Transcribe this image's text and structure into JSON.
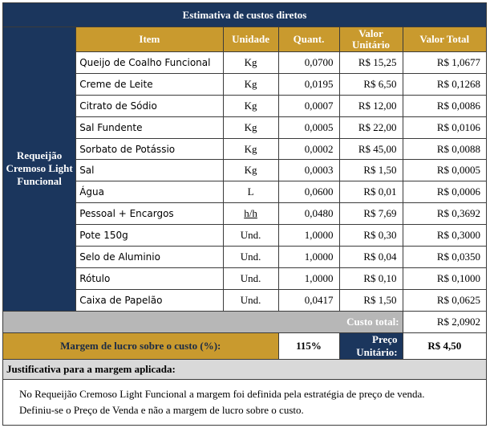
{
  "table": {
    "title": "Estimativa de custos diretos",
    "product_name": "Requeijão Cremoso Light Funcional",
    "headers": {
      "item": "Item",
      "unit": "Unidade",
      "qty": "Quant.",
      "unit_value": "Valor Unitário",
      "total_value": "Valor Total"
    },
    "rows": [
      {
        "item": "Queijo de Coalho Funcional",
        "unit": "Kg",
        "qty": "0,0700",
        "unit_value": "R$ 15,25",
        "total_value": "R$ 1,0677"
      },
      {
        "item": "Creme de Leite",
        "unit": "Kg",
        "qty": "0,0195",
        "unit_value": "R$ 6,50",
        "total_value": "R$ 0,1268"
      },
      {
        "item": "Citrato de Sódio",
        "unit": "Kg",
        "qty": "0,0007",
        "unit_value": "R$ 12,00",
        "total_value": "R$ 0,0086"
      },
      {
        "item": "Sal Fundente",
        "unit": "Kg",
        "qty": "0,0005",
        "unit_value": "R$ 22,00",
        "total_value": "R$ 0,0106"
      },
      {
        "item": "Sorbato de Potássio",
        "unit": "Kg",
        "qty": "0,0002",
        "unit_value": "R$ 45,00",
        "total_value": "R$ 0,0088"
      },
      {
        "item": "Sal",
        "unit": "Kg",
        "qty": "0,0003",
        "unit_value": "R$ 1,50",
        "total_value": "R$ 0,0005"
      },
      {
        "item": "Água",
        "unit": "L",
        "qty": "0,0600",
        "unit_value": "R$ 0,01",
        "total_value": "R$ 0,0006"
      },
      {
        "item": "Pessoal + Encargos",
        "unit": "h/h",
        "qty": "0,0480",
        "unit_value": "R$ 7,69",
        "total_value": "R$ 0,3692"
      },
      {
        "item": "Pote 150g",
        "unit": "Und.",
        "qty": "1,0000",
        "unit_value": "R$ 0,30",
        "total_value": "R$ 0,3000"
      },
      {
        "item": "Selo de Aluminio",
        "unit": "Und.",
        "qty": "1,0000",
        "unit_value": "R$ 0,04",
        "total_value": "R$ 0,0350"
      },
      {
        "item": "Rótulo",
        "unit": "Und.",
        "qty": "1,0000",
        "unit_value": "R$ 0,10",
        "total_value": "R$ 0,1000"
      },
      {
        "item": "Caixa de Papelão",
        "unit": "Und.",
        "qty": "0,0417",
        "unit_value": "R$ 1,50",
        "total_value": "R$ 0,0625"
      }
    ],
    "total_cost_label": "Custo total:",
    "total_cost_value": "R$ 2,0902",
    "margin_label": "Margem de lucro sobre o custo (%):",
    "margin_value": "115%",
    "price_label": "Preço Unitário:",
    "price_value": "R$ 4,50",
    "justification_title": "Justificativa para a margem aplicada:",
    "justification_line1": "No Requeijão Cremoso Light Funcional a margem foi definida pela estratégia de preço de venda.",
    "justification_line2": "Definiu-se o Preço de Venda e não a margem de lucro sobre o custo."
  },
  "colors": {
    "navy": "#1b365d",
    "gold": "#c99a2e",
    "grey": "#b7b7b7",
    "light_grey": "#d9d9d9"
  }
}
